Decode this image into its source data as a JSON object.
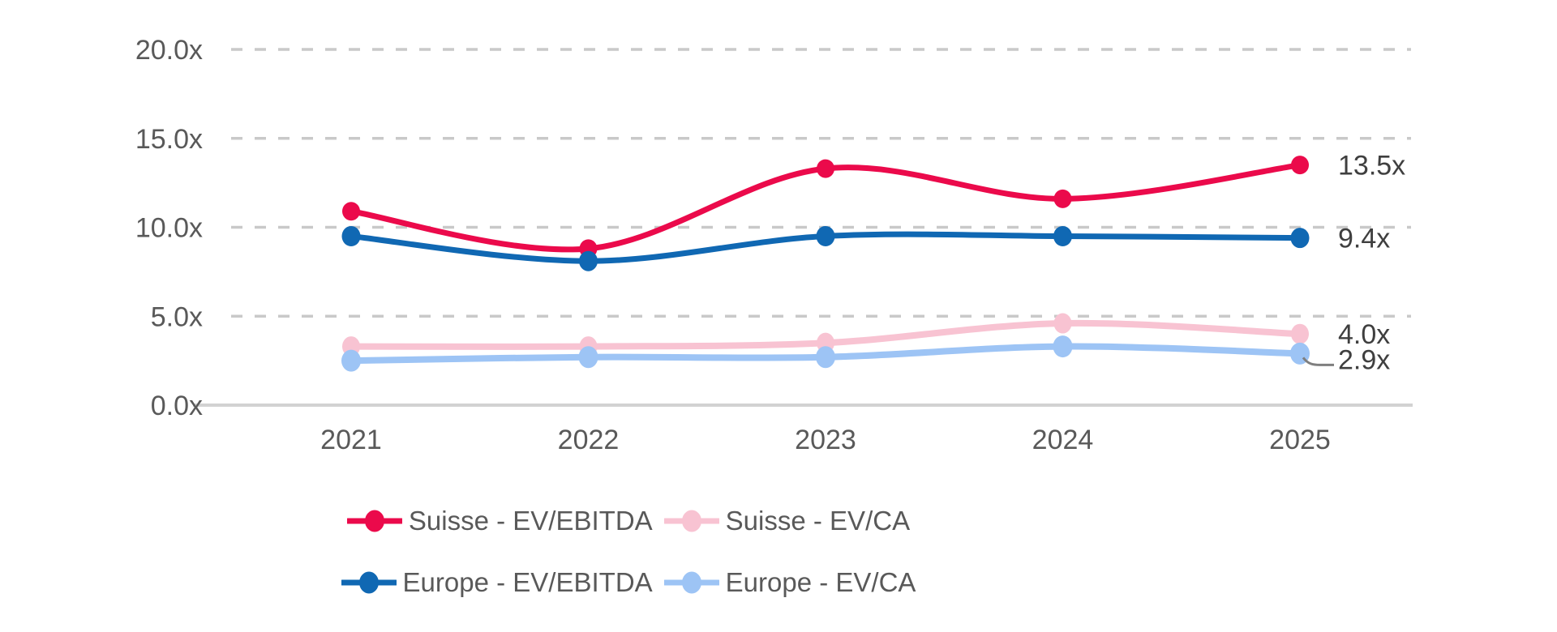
{
  "chart_data": {
    "type": "line",
    "title": "",
    "xlabel": "",
    "ylabel": "",
    "categories": [
      "2021",
      "2022",
      "2023",
      "2024",
      "2025"
    ],
    "series": [
      {
        "name": "Suisse - EV/EBITDA",
        "color": "#EB0A4B",
        "values": [
          10.9,
          8.8,
          13.3,
          11.6,
          13.5
        ],
        "end_label": "13.5x"
      },
      {
        "name": "Suisse - EV/CA",
        "color": "#F8C3D2",
        "values": [
          3.3,
          3.3,
          3.5,
          4.6,
          4.0
        ],
        "end_label": "4.0x"
      },
      {
        "name": "Europe - EV/EBITDA",
        "color": "#1068B3",
        "values": [
          9.5,
          8.1,
          9.5,
          9.5,
          9.4
        ],
        "end_label": "9.4x"
      },
      {
        "name": "Europe - EV/CA",
        "color": "#9DC4F5",
        "values": [
          2.5,
          2.7,
          2.7,
          3.3,
          2.9
        ],
        "end_label": "2.9x"
      }
    ],
    "yticks": [
      {
        "label": "20.0x",
        "value": 20
      },
      {
        "label": "15.0x",
        "value": 15
      },
      {
        "label": "10.0x",
        "value": 10
      },
      {
        "label": "5.0x",
        "value": 5
      },
      {
        "label": "0.0x",
        "value": 0
      }
    ],
    "ylim": [
      0,
      20
    ],
    "grid": "horizontal-dashed",
    "legend_position": "bottom",
    "legend_rows": [
      [
        0,
        1
      ],
      [
        2,
        3
      ]
    ]
  },
  "styles": {
    "grid_color": "#C9C9C9",
    "axis_color": "#D2D2D2",
    "tick_text_color": "#595959",
    "end_label_color": "#3F3F3F",
    "leader_color": "#7F7F7F",
    "background": "#FFFFFF"
  }
}
